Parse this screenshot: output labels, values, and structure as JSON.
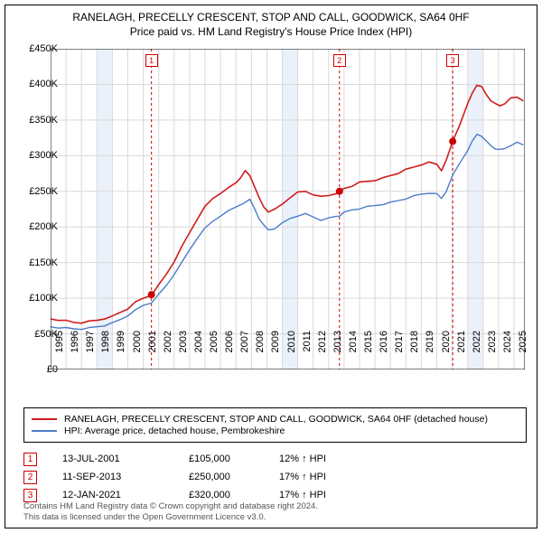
{
  "title_line1": "RANELAGH, PRECELLY CRESCENT, STOP AND CALL, GOODWICK, SA64 0HF",
  "title_line2": "Price paid vs. HM Land Registry's House Price Index (HPI)",
  "chart": {
    "type": "line",
    "background_color": "#ffffff",
    "grid_color": "#d9d9d9",
    "xlim": [
      1995,
      2025.7
    ],
    "ylim": [
      0,
      450000
    ],
    "ytick_step": 50000,
    "ytick_labels": [
      "£0",
      "£50K",
      "£100K",
      "£150K",
      "£200K",
      "£250K",
      "£300K",
      "£350K",
      "£400K",
      "£450K"
    ],
    "x_ticks": [
      1995,
      1996,
      1997,
      1998,
      1999,
      2000,
      2001,
      2002,
      2003,
      2004,
      2005,
      2006,
      2007,
      2008,
      2009,
      2010,
      2011,
      2012,
      2013,
      2014,
      2015,
      2016,
      2017,
      2018,
      2019,
      2020,
      2021,
      2022,
      2023,
      2024,
      2025
    ],
    "shade_color": "#eaf1fa",
    "shade_bands": [
      [
        1998,
        1999
      ],
      [
        2010,
        2011
      ],
      [
        2022,
        2023
      ]
    ],
    "markers": [
      {
        "num": "1",
        "year": 2001.53,
        "price": 105000,
        "vline_color": "#cc0000",
        "dot_color": "#cc0000"
      },
      {
        "num": "2",
        "year": 2013.7,
        "price": 250000,
        "vline_color": "#cc0000",
        "dot_color": "#cc0000"
      },
      {
        "num": "3",
        "year": 2021.03,
        "price": 320000,
        "vline_color": "#cc0000",
        "dot_color": "#cc0000"
      }
    ],
    "series": [
      {
        "name": "property",
        "color": "#cf1d1d",
        "width": 1.6,
        "points": [
          [
            1995,
            71000
          ],
          [
            1995.5,
            70000
          ],
          [
            1996,
            68000
          ],
          [
            1996.5,
            66000
          ],
          [
            1997,
            66000
          ],
          [
            1997.5,
            67000
          ],
          [
            1998,
            69000
          ],
          [
            1998.5,
            72000
          ],
          [
            1999,
            74000
          ],
          [
            1999.5,
            80000
          ],
          [
            2000,
            86000
          ],
          [
            2000.5,
            94000
          ],
          [
            2001,
            100000
          ],
          [
            2001.53,
            105000
          ],
          [
            2002,
            118000
          ],
          [
            2002.5,
            134000
          ],
          [
            2003,
            152000
          ],
          [
            2003.5,
            172000
          ],
          [
            2004,
            192000
          ],
          [
            2004.5,
            212000
          ],
          [
            2005,
            228000
          ],
          [
            2005.5,
            240000
          ],
          [
            2006,
            248000
          ],
          [
            2006.5,
            254000
          ],
          [
            2007,
            262000
          ],
          [
            2007.3,
            270000
          ],
          [
            2007.6,
            278000
          ],
          [
            2007.9,
            272000
          ],
          [
            2008.2,
            258000
          ],
          [
            2008.5,
            240000
          ],
          [
            2008.8,
            228000
          ],
          [
            2009.1,
            222000
          ],
          [
            2009.5,
            224000
          ],
          [
            2010,
            232000
          ],
          [
            2010.5,
            242000
          ],
          [
            2011,
            248000
          ],
          [
            2011.5,
            250000
          ],
          [
            2012,
            246000
          ],
          [
            2012.5,
            242000
          ],
          [
            2013,
            244000
          ],
          [
            2013.5,
            248000
          ],
          [
            2013.7,
            250000
          ],
          [
            2014,
            254000
          ],
          [
            2014.5,
            258000
          ],
          [
            2015,
            262000
          ],
          [
            2015.5,
            264000
          ],
          [
            2016,
            266000
          ],
          [
            2016.5,
            268000
          ],
          [
            2017,
            272000
          ],
          [
            2017.5,
            276000
          ],
          [
            2018,
            280000
          ],
          [
            2018.5,
            284000
          ],
          [
            2019,
            288000
          ],
          [
            2019.5,
            290000
          ],
          [
            2020,
            288000
          ],
          [
            2020.3,
            280000
          ],
          [
            2020.6,
            292000
          ],
          [
            2021.03,
            320000
          ],
          [
            2021.5,
            345000
          ],
          [
            2022,
            372000
          ],
          [
            2022.3,
            388000
          ],
          [
            2022.6,
            400000
          ],
          [
            2022.9,
            396000
          ],
          [
            2023.2,
            386000
          ],
          [
            2023.5,
            378000
          ],
          [
            2023.8,
            372000
          ],
          [
            2024.1,
            370000
          ],
          [
            2024.4,
            374000
          ],
          [
            2024.8,
            380000
          ],
          [
            2025.2,
            382000
          ],
          [
            2025.6,
            378000
          ]
        ]
      },
      {
        "name": "hpi",
        "color": "#4a7cc9",
        "width": 1.4,
        "points": [
          [
            1995,
            60000
          ],
          [
            1995.5,
            59000
          ],
          [
            1996,
            58000
          ],
          [
            1996.5,
            57000
          ],
          [
            1997,
            57000
          ],
          [
            1997.5,
            58000
          ],
          [
            1998,
            60000
          ],
          [
            1998.5,
            62000
          ],
          [
            1999,
            65000
          ],
          [
            1999.5,
            70000
          ],
          [
            2000,
            76000
          ],
          [
            2000.5,
            83000
          ],
          [
            2001,
            90000
          ],
          [
            2001.53,
            94000
          ],
          [
            2002,
            105000
          ],
          [
            2002.5,
            118000
          ],
          [
            2003,
            134000
          ],
          [
            2003.5,
            150000
          ],
          [
            2004,
            168000
          ],
          [
            2004.5,
            185000
          ],
          [
            2005,
            198000
          ],
          [
            2005.5,
            208000
          ],
          [
            2006,
            216000
          ],
          [
            2006.5,
            222000
          ],
          [
            2007,
            228000
          ],
          [
            2007.5,
            234000
          ],
          [
            2007.9,
            238000
          ],
          [
            2008.2,
            226000
          ],
          [
            2008.5,
            212000
          ],
          [
            2008.8,
            202000
          ],
          [
            2009.1,
            196000
          ],
          [
            2009.5,
            198000
          ],
          [
            2010,
            205000
          ],
          [
            2010.5,
            212000
          ],
          [
            2011,
            216000
          ],
          [
            2011.5,
            218000
          ],
          [
            2012,
            214000
          ],
          [
            2012.5,
            210000
          ],
          [
            2013,
            212000
          ],
          [
            2013.5,
            215000
          ],
          [
            2013.7,
            216000
          ],
          [
            2014,
            220000
          ],
          [
            2014.5,
            224000
          ],
          [
            2015,
            226000
          ],
          [
            2015.5,
            228000
          ],
          [
            2016,
            230000
          ],
          [
            2016.5,
            232000
          ],
          [
            2017,
            234000
          ],
          [
            2017.5,
            237000
          ],
          [
            2018,
            240000
          ],
          [
            2018.5,
            243000
          ],
          [
            2019,
            246000
          ],
          [
            2019.5,
            248000
          ],
          [
            2020,
            246000
          ],
          [
            2020.3,
            240000
          ],
          [
            2020.6,
            250000
          ],
          [
            2021.03,
            272000
          ],
          [
            2021.5,
            290000
          ],
          [
            2022,
            308000
          ],
          [
            2022.3,
            320000
          ],
          [
            2022.6,
            330000
          ],
          [
            2022.9,
            328000
          ],
          [
            2023.2,
            320000
          ],
          [
            2023.5,
            314000
          ],
          [
            2023.8,
            310000
          ],
          [
            2024.1,
            308000
          ],
          [
            2024.4,
            310000
          ],
          [
            2024.8,
            315000
          ],
          [
            2025.2,
            318000
          ],
          [
            2025.6,
            315000
          ]
        ]
      }
    ]
  },
  "legend": [
    {
      "color": "#cf1d1d",
      "label": "RANELAGH, PRECELLY CRESCENT, STOP AND CALL, GOODWICK, SA64 0HF (detached house)"
    },
    {
      "color": "#4a7cc9",
      "label": "HPI: Average price, detached house, Pembrokeshire"
    }
  ],
  "sales": [
    {
      "num": "1",
      "date": "13-JUL-2001",
      "price": "£105,000",
      "diff": "12% ↑ HPI"
    },
    {
      "num": "2",
      "date": "11-SEP-2013",
      "price": "£250,000",
      "diff": "17% ↑ HPI"
    },
    {
      "num": "3",
      "date": "12-JAN-2021",
      "price": "£320,000",
      "diff": "17% ↑ HPI"
    }
  ],
  "footnote_l1": "Contains HM Land Registry data © Crown copyright and database right 2024.",
  "footnote_l2": "This data is licensed under the Open Government Licence v3.0."
}
